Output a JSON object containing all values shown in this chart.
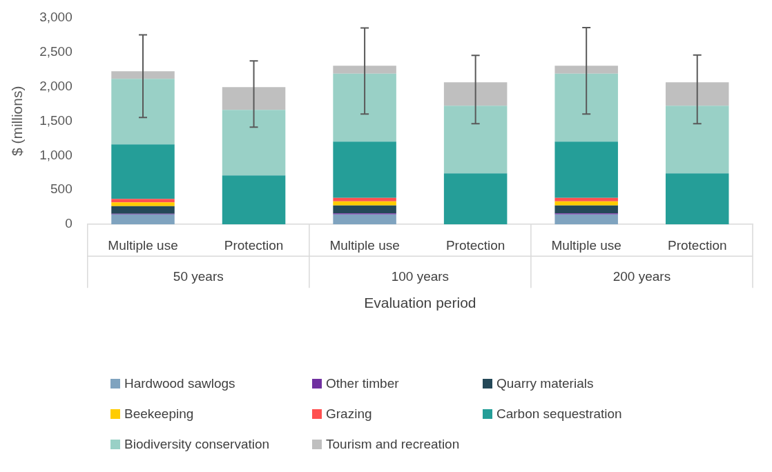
{
  "chart_data": {
    "type": "bar",
    "stacked": true,
    "xlabel": "Evaluation period",
    "ylabel": "$ (millions)",
    "categories": [
      "Multiple use",
      "Protection",
      "Multiple use",
      "Protection",
      "Multiple use",
      "Protection"
    ],
    "annotations": [
      "50 years",
      "100 years",
      "200 years"
    ],
    "ylim": [
      0,
      3000
    ],
    "yticks": [
      {
        "value": 0,
        "label": "0"
      },
      {
        "value": 500,
        "label": "500"
      },
      {
        "value": 1000,
        "label": "1,000"
      },
      {
        "value": 1500,
        "label": "1,500"
      },
      {
        "value": 2000,
        "label": "2,000"
      },
      {
        "value": 2500,
        "label": "2,500"
      },
      {
        "value": 3000,
        "label": "3,000"
      }
    ],
    "grid": false,
    "legend": "bottom",
    "series": [
      {
        "name": "Hardwood sawlogs",
        "color": "#7fa3bf",
        "values": [
          145,
          0,
          145,
          0,
          145,
          0
        ]
      },
      {
        "name": "Other timber",
        "color": "#7030a0",
        "values": [
          10,
          0,
          15,
          0,
          15,
          0
        ]
      },
      {
        "name": "Quarry materials",
        "color": "#244858",
        "values": [
          110,
          0,
          115,
          0,
          115,
          0
        ]
      },
      {
        "name": "Beekeeping",
        "color": "#ffcc00",
        "values": [
          55,
          0,
          60,
          0,
          60,
          0
        ]
      },
      {
        "name": "Grazing",
        "color": "#ff5050",
        "values": [
          50,
          0,
          50,
          0,
          50,
          0
        ]
      },
      {
        "name": "Carbon sequestration",
        "color": "#259e98",
        "values": [
          790,
          710,
          815,
          740,
          815,
          740
        ]
      },
      {
        "name": "Biodiversity conservation",
        "color": "#99d0c6",
        "values": [
          950,
          950,
          985,
          980,
          985,
          980
        ]
      },
      {
        "name": "Tourism and recreation",
        "color": "#bfbfbf",
        "values": [
          110,
          330,
          115,
          340,
          115,
          340
        ],
        "errors": [
          [
            1550,
            2750
          ],
          [
            1410,
            2370
          ],
          [
            1600,
            2850
          ],
          [
            1460,
            2450
          ],
          [
            1600,
            2855
          ],
          [
            1460,
            2455
          ]
        ]
      }
    ]
  }
}
